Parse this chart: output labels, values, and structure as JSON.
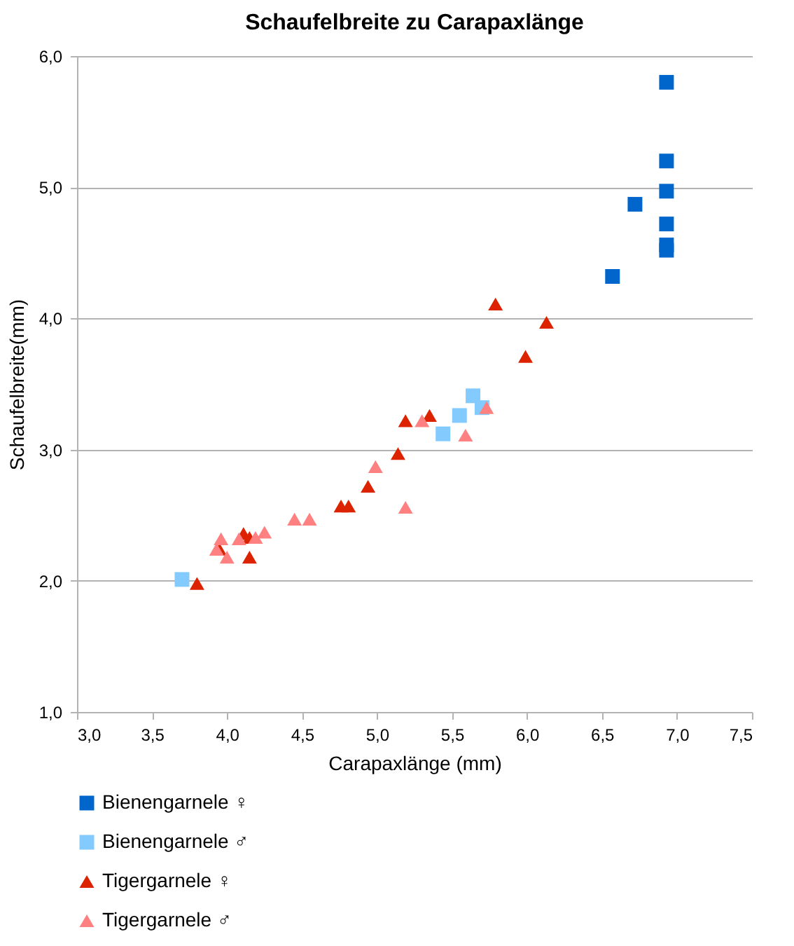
{
  "chart_data": {
    "type": "scatter",
    "title": "Schaufelbreite zu Carapaxlänge",
    "xlabel": "Carapaxlänge (mm)",
    "ylabel": "Schaufelbreite(mm)",
    "xlim": [
      3.0,
      7.5
    ],
    "xticks": [
      {
        "value": 3.0,
        "label": "3,0"
      },
      {
        "value": 3.5,
        "label": "3,5"
      },
      {
        "value": 4.0,
        "label": "4,0"
      },
      {
        "value": 4.5,
        "label": "4,5"
      },
      {
        "value": 5.0,
        "label": "5,0"
      },
      {
        "value": 5.5,
        "label": "5,5"
      },
      {
        "value": 6.0,
        "label": "6,0"
      },
      {
        "value": 6.5,
        "label": "6,5"
      },
      {
        "value": 7.0,
        "label": "7,0"
      },
      {
        "value": 7.5,
        "label": "7,5"
      }
    ],
    "ylim": [
      1.0,
      6.0
    ],
    "yticks": [
      {
        "value": 1.0,
        "label": "1,0"
      },
      {
        "value": 2.0,
        "label": "2,0"
      },
      {
        "value": 3.0,
        "label": "3,0"
      },
      {
        "value": 4.0,
        "label": "4,0"
      },
      {
        "value": 5.0,
        "label": "5,0"
      },
      {
        "value": 6.0,
        "label": "6,0"
      }
    ],
    "grid": "y",
    "legend": "bottom",
    "series": [
      {
        "name": "Bienengarnele ♀",
        "color": "#0066cc",
        "marker": "square",
        "x": [
          6.93,
          6.93,
          6.93,
          6.72,
          6.93,
          6.93,
          6.93,
          6.57
        ],
        "values": [
          5.8,
          5.2,
          4.97,
          4.87,
          4.72,
          4.56,
          4.52,
          4.32
        ]
      },
      {
        "name": "Bienengarnele ♂",
        "color": "#83caff",
        "marker": "square",
        "x": [
          3.7,
          5.44,
          5.55,
          5.64,
          5.7
        ],
        "values": [
          2.01,
          3.12,
          3.26,
          3.41,
          3.32
        ]
      },
      {
        "name": "Tigergarnele ♀",
        "color": "#dd2200",
        "marker": "triangle",
        "x": [
          3.8,
          3.95,
          4.11,
          4.15,
          4.15,
          4.76,
          4.81,
          4.94,
          5.14,
          5.19,
          5.35,
          5.79,
          5.99,
          6.13
        ],
        "values": [
          1.98,
          2.24,
          2.36,
          2.33,
          2.18,
          2.57,
          2.57,
          2.72,
          2.97,
          3.22,
          3.26,
          4.11,
          3.71,
          3.97
        ]
      },
      {
        "name": "Tigergarnele ♂",
        "color": "#ff8080",
        "marker": "triangle",
        "x": [
          3.93,
          3.96,
          4.0,
          4.08,
          4.19,
          4.25,
          4.45,
          4.55,
          4.99,
          5.19,
          5.3,
          5.59,
          5.73
        ],
        "values": [
          2.24,
          2.32,
          2.18,
          2.32,
          2.33,
          2.37,
          2.47,
          2.47,
          2.87,
          2.56,
          3.22,
          3.11,
          3.32
        ]
      }
    ]
  }
}
